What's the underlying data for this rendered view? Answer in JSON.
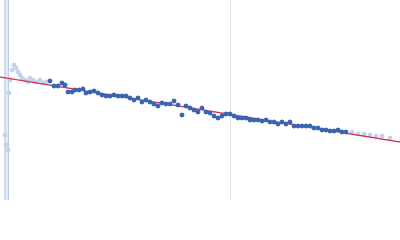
{
  "chart_data": {
    "type": "scatter",
    "xlim": [
      0,
      400
    ],
    "ylim": [
      0,
      200
    ],
    "series": [
      {
        "type": "scatter",
        "color": "#c3d3ea",
        "x": [
          5,
          6,
          8,
          9,
          10,
          12,
          14,
          16,
          18,
          20,
          22,
          25,
          28,
          30,
          33,
          36,
          40,
          43,
          46,
          352,
          358,
          364,
          370,
          376,
          382,
          390
        ],
        "values": [
          65,
          55,
          50,
          107,
          120,
          130,
          135,
          132,
          128,
          125,
          122,
          120,
          118,
          122,
          120,
          118,
          120,
          117,
          118,
          68,
          66,
          66,
          65,
          64,
          64,
          62
        ]
      },
      {
        "type": "line",
        "color": "#d0314a",
        "x": [
          0,
          400
        ],
        "values": [
          123,
          58
        ]
      },
      {
        "type": "scatter",
        "color": "#3a63b0",
        "x": [
          50,
          54,
          58,
          62,
          65,
          68,
          72,
          75,
          79,
          83,
          86,
          90,
          94,
          98,
          102,
          106,
          110,
          114,
          118,
          122,
          126,
          130,
          134,
          138,
          142,
          146,
          150,
          154,
          158,
          162,
          166,
          170,
          174,
          178,
          182,
          186,
          190,
          194,
          198,
          202,
          206,
          210,
          214,
          218,
          222,
          226,
          230,
          234,
          238,
          242,
          246,
          250,
          254,
          258,
          262,
          266,
          270,
          274,
          278,
          282,
          286,
          290,
          294,
          298,
          302,
          306,
          310,
          314,
          318,
          322,
          326,
          330,
          334,
          338,
          342,
          346
        ],
        "values": [
          119,
          114,
          114,
          117,
          115,
          108,
          108,
          110,
          110,
          111,
          107,
          108,
          109,
          107,
          105,
          104,
          104,
          105,
          104,
          104,
          104,
          102,
          100,
          102,
          98,
          100,
          98,
          96,
          94,
          97,
          96,
          96,
          99,
          95,
          85,
          94,
          92,
          90,
          88,
          92,
          88,
          87,
          84,
          82,
          84,
          86,
          86,
          84,
          82,
          82,
          82,
          80,
          80,
          80,
          79,
          80,
          78,
          78,
          76,
          78,
          76,
          78,
          74,
          74,
          74,
          74,
          74,
          72,
          72,
          70,
          70,
          69,
          69,
          70,
          68,
          68
        ]
      }
    ]
  }
}
